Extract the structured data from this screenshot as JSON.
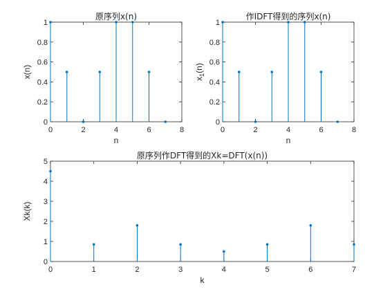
{
  "chart_data": [
    {
      "type": "stem",
      "title": "原序列x(n)",
      "xlabel": "n",
      "ylabel": "x(n)",
      "xlim": [
        0,
        8
      ],
      "ylim": [
        0,
        1
      ],
      "xticks": [
        0,
        2,
        4,
        6,
        8
      ],
      "xtick_labels": [
        "0",
        "2",
        "4",
        "6",
        "8"
      ],
      "yticks": [
        0,
        0.2,
        0.4,
        0.6,
        0.8,
        1
      ],
      "ytick_labels": [
        "0",
        "0.2",
        "0.4",
        "0.6",
        "0.8",
        "1"
      ],
      "x": [
        0,
        1,
        2,
        3,
        4,
        5,
        6,
        7
      ],
      "values": [
        1,
        0.5,
        0,
        0.5,
        1,
        1,
        0.5,
        0
      ],
      "color": "#0072BD",
      "grid": false
    },
    {
      "type": "stem",
      "title": "作IDFT得到的序列x(n)",
      "xlabel": "n",
      "ylabel": "x",
      "ylabel_subscript": "1",
      "ylabel_suffix": "(n)",
      "xlim": [
        0,
        8
      ],
      "ylim": [
        0,
        1
      ],
      "xticks": [
        0,
        2,
        4,
        6,
        8
      ],
      "xtick_labels": [
        "0",
        "2",
        "4",
        "6",
        "8"
      ],
      "yticks": [
        0,
        0.2,
        0.4,
        0.6,
        0.8,
        1
      ],
      "ytick_labels": [
        "0",
        "0.2",
        "0.4",
        "0.6",
        "0.8",
        "1"
      ],
      "x": [
        0,
        1,
        2,
        3,
        4,
        5,
        6,
        7
      ],
      "values": [
        1,
        0.5,
        0,
        0.5,
        1,
        1,
        0.5,
        0
      ],
      "color": "#0072BD",
      "grid": false
    },
    {
      "type": "stem",
      "title": "原序列作DFT得到的Xk=DFT(x(n))",
      "xlabel": "k",
      "ylabel": "Xk(k)",
      "xlim": [
        0,
        7
      ],
      "ylim": [
        0,
        5
      ],
      "xticks": [
        0,
        1,
        2,
        3,
        4,
        5,
        6,
        7
      ],
      "xtick_labels": [
        "0",
        "1",
        "2",
        "3",
        "4",
        "5",
        "6",
        "7"
      ],
      "yticks": [
        0,
        1,
        2,
        3,
        4,
        5
      ],
      "ytick_labels": [
        "0",
        "1",
        "2",
        "3",
        "4",
        "5"
      ],
      "x": [
        0,
        1,
        2,
        3,
        4,
        5,
        6,
        7
      ],
      "values": [
        4.5,
        0.85,
        1.8,
        0.85,
        0.5,
        0.85,
        1.8,
        0.85
      ],
      "color": "#0072BD",
      "grid": false
    }
  ]
}
